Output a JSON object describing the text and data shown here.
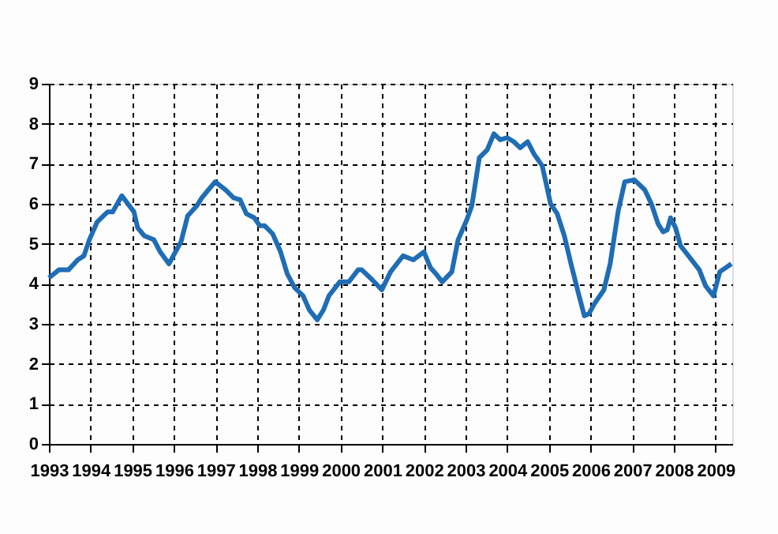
{
  "chart_data": {
    "type": "line",
    "x": [
      1993.0,
      1993.24,
      1993.47,
      1993.69,
      1993.84,
      1993.97,
      1994.16,
      1994.41,
      1994.53,
      1994.75,
      1995.04,
      1995.13,
      1995.29,
      1995.52,
      1995.67,
      1995.88,
      1996.17,
      1996.33,
      1996.55,
      1996.67,
      1996.99,
      1997.24,
      1997.43,
      1997.59,
      1997.74,
      1997.93,
      1998.06,
      1998.18,
      1998.37,
      1998.56,
      1998.72,
      1998.9,
      1999.1,
      1999.25,
      1999.44,
      1999.59,
      1999.72,
      1999.98,
      2000.2,
      2000.42,
      2000.51,
      2000.76,
      2000.99,
      2001.2,
      2001.5,
      2001.75,
      2002.0,
      2002.16,
      2002.29,
      2002.44,
      2002.67,
      2002.82,
      2003.03,
      2003.15,
      2003.33,
      2003.52,
      2003.68,
      2003.83,
      2004.0,
      2004.16,
      2004.31,
      2004.49,
      2004.64,
      2004.84,
      2005.04,
      2005.2,
      2005.37,
      2005.53,
      2005.7,
      2005.85,
      2005.96,
      2006.09,
      2006.32,
      2006.47,
      2006.66,
      2006.82,
      2007.05,
      2007.3,
      2007.46,
      2007.62,
      2007.74,
      2007.84,
      2007.92,
      2008.04,
      2008.16,
      2008.35,
      2008.61,
      2008.76,
      2008.95,
      2009.1,
      2009.38
    ],
    "series": [
      {
        "color": "#1f6db5",
        "values": [
          4.15,
          4.35,
          4.35,
          4.6,
          4.7,
          5.1,
          5.55,
          5.8,
          5.8,
          6.2,
          5.8,
          5.4,
          5.2,
          5.1,
          4.8,
          4.5,
          5.05,
          5.7,
          5.95,
          6.15,
          6.55,
          6.35,
          6.15,
          6.1,
          5.75,
          5.65,
          5.45,
          5.45,
          5.25,
          4.8,
          4.25,
          3.9,
          3.7,
          3.35,
          3.1,
          3.35,
          3.7,
          4.05,
          4.05,
          4.35,
          4.35,
          4.1,
          3.85,
          4.3,
          4.7,
          4.6,
          4.8,
          4.4,
          4.25,
          4.05,
          4.3,
          5.1,
          5.6,
          5.95,
          7.15,
          7.35,
          7.75,
          7.6,
          7.65,
          7.55,
          7.4,
          7.55,
          7.25,
          6.95,
          6.0,
          5.75,
          5.2,
          4.5,
          3.8,
          3.2,
          3.25,
          3.5,
          3.85,
          4.5,
          5.8,
          6.55,
          6.6,
          6.35,
          6.0,
          5.5,
          5.3,
          5.35,
          5.65,
          5.4,
          4.95,
          4.7,
          4.35,
          3.95,
          3.7,
          4.3,
          4.5
        ]
      }
    ],
    "xlim": [
      1993,
      2009.4
    ],
    "xticks": [
      1993,
      1994,
      1995,
      1996,
      1997,
      1998,
      1999,
      2000,
      2001,
      2002,
      2003,
      2004,
      2005,
      2006,
      2007,
      2008,
      2009
    ],
    "ylim": [
      0,
      9
    ],
    "yticks": [
      0,
      1,
      2,
      3,
      4,
      5,
      6,
      7,
      8,
      9
    ],
    "grid": true,
    "legend": false,
    "marker": "none",
    "line_style": "solid"
  }
}
